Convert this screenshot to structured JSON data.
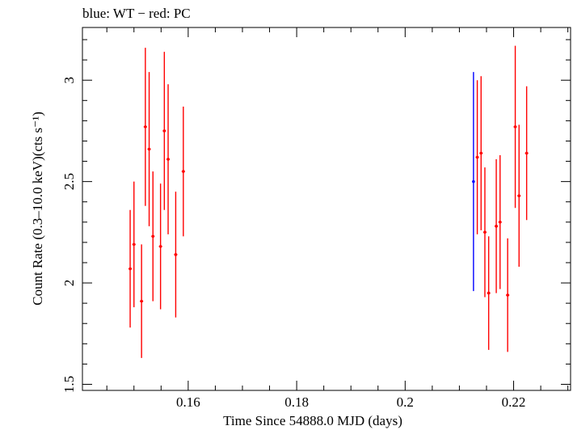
{
  "chart_data": {
    "type": "scatter",
    "title": "blue: WT − red: PC",
    "xlabel": "Time Since 54888.0 MJD (days)",
    "ylabel": "Count Rate (0.3–10.0 keV)(cts s⁻¹)",
    "xlim": [
      0.1405,
      0.2305
    ],
    "ylim": [
      1.47,
      3.26
    ],
    "xticks": [
      0.16,
      0.18,
      0.2,
      0.22
    ],
    "xtick_labels": [
      "0.16",
      "0.18",
      "0.2",
      "0.22"
    ],
    "yticks": [
      1.5,
      2,
      2.5,
      3
    ],
    "ytick_labels": [
      "1.5",
      "2",
      "2.5",
      "3"
    ],
    "grid": false,
    "series": [
      {
        "name": "WT",
        "color": "#0000ff",
        "points": [
          {
            "x": 0.2126,
            "y": 2.5,
            "yerr": 0.54,
            "xerr": 0.0001
          }
        ]
      },
      {
        "name": "PC",
        "color": "#ff0000",
        "points": [
          {
            "x": 0.1493,
            "y": 2.07,
            "yerr": 0.29,
            "xerr": 0.0003
          },
          {
            "x": 0.15,
            "y": 2.19,
            "yerr": 0.31,
            "xerr": 0.0003
          },
          {
            "x": 0.1514,
            "y": 1.91,
            "yerr": 0.28,
            "xerr": 0.0003
          },
          {
            "x": 0.1521,
            "y": 2.77,
            "yerr": 0.39,
            "xerr": 0.0003
          },
          {
            "x": 0.1528,
            "y": 2.66,
            "yerr": 0.38,
            "xerr": 0.0003
          },
          {
            "x": 0.1535,
            "y": 2.23,
            "yerr": 0.32,
            "xerr": 0.0003
          },
          {
            "x": 0.1549,
            "y": 2.18,
            "yerr": 0.31,
            "xerr": 0.0003
          },
          {
            "x": 0.1556,
            "y": 2.75,
            "yerr": 0.39,
            "xerr": 0.0003
          },
          {
            "x": 0.1563,
            "y": 2.61,
            "yerr": 0.37,
            "xerr": 0.0003
          },
          {
            "x": 0.1577,
            "y": 2.14,
            "yerr": 0.31,
            "xerr": 0.0003
          },
          {
            "x": 0.1591,
            "y": 2.55,
            "yerr": 0.32,
            "xerr": 0.0003
          },
          {
            "x": 0.2133,
            "y": 2.62,
            "yerr": 0.38,
            "xerr": 0.0003
          },
          {
            "x": 0.214,
            "y": 2.64,
            "yerr": 0.38,
            "xerr": 0.0003
          },
          {
            "x": 0.2147,
            "y": 2.25,
            "yerr": 0.32,
            "xerr": 0.0003
          },
          {
            "x": 0.2154,
            "y": 1.95,
            "yerr": 0.28,
            "xerr": 0.0003
          },
          {
            "x": 0.2168,
            "y": 2.28,
            "yerr": 0.33,
            "xerr": 0.0003
          },
          {
            "x": 0.2175,
            "y": 2.3,
            "yerr": 0.33,
            "xerr": 0.0003
          },
          {
            "x": 0.2189,
            "y": 1.94,
            "yerr": 0.28,
            "xerr": 0.0003
          },
          {
            "x": 0.2203,
            "y": 2.77,
            "yerr": 0.4,
            "xerr": 0.0003
          },
          {
            "x": 0.221,
            "y": 2.43,
            "yerr": 0.35,
            "xerr": 0.0003
          },
          {
            "x": 0.2224,
            "y": 2.64,
            "yerr": 0.33,
            "xerr": 0.0003
          }
        ]
      }
    ]
  }
}
